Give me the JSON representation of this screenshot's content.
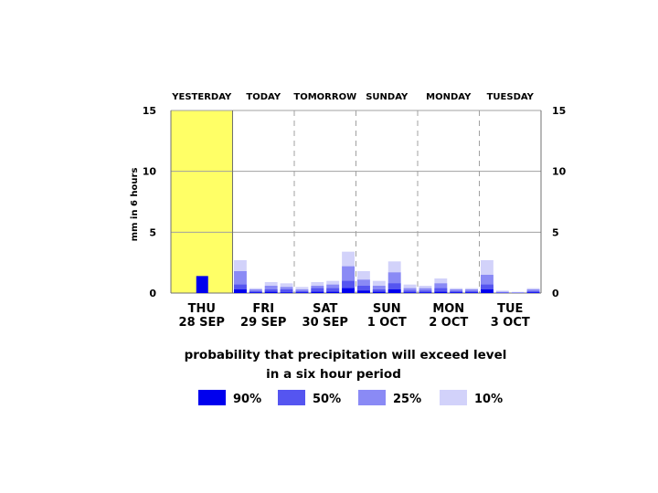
{
  "chart_data": {
    "type": "bar",
    "title": "",
    "ylabel": "mm in 6 hours",
    "ylim": [
      0,
      15
    ],
    "y_ticks": [
      "0",
      "5",
      "10",
      "15"
    ],
    "grid": true,
    "top_labels": [
      "YESTERDAY",
      "TODAY",
      "TOMORROW",
      "SUNDAY",
      "MONDAY",
      "TUESDAY"
    ],
    "day_labels": [
      {
        "day": "THU",
        "date": "28 SEP"
      },
      {
        "day": "FRI",
        "date": "29 SEP"
      },
      {
        "day": "SAT",
        "date": "30 SEP"
      },
      {
        "day": "SUN",
        "date": "1 OCT"
      },
      {
        "day": "MON",
        "date": "2 OCT"
      },
      {
        "day": "TUE",
        "date": "3 OCT"
      }
    ],
    "caption": [
      "probability that precipitation will exceed level",
      "in a six hour period"
    ],
    "series": [
      {
        "name": "90%",
        "color": "#0000ee"
      },
      {
        "name": "50%",
        "color": "#5555f0"
      },
      {
        "name": "25%",
        "color": "#8a8af5"
      },
      {
        "name": "10%",
        "color": "#d2d2fa"
      }
    ],
    "yesterday": {
      "value": 1.4,
      "color": "#0000ee",
      "highlight": "#ffff66"
    },
    "periods": [
      {
        "v90": 0.3,
        "v50": 0.7,
        "v25": 1.8,
        "v10": 2.7
      },
      {
        "v90": 0.05,
        "v50": 0.15,
        "v25": 0.3,
        "v10": 0.4
      },
      {
        "v90": 0.1,
        "v50": 0.3,
        "v25": 0.6,
        "v10": 0.9
      },
      {
        "v90": 0.05,
        "v50": 0.3,
        "v25": 0.5,
        "v10": 0.8
      },
      {
        "v90": 0.05,
        "v50": 0.15,
        "v25": 0.3,
        "v10": 0.5
      },
      {
        "v90": 0.1,
        "v50": 0.4,
        "v25": 0.6,
        "v10": 0.9
      },
      {
        "v90": 0.1,
        "v50": 0.4,
        "v25": 0.7,
        "v10": 1.0
      },
      {
        "v90": 0.4,
        "v50": 1.0,
        "v25": 2.2,
        "v10": 3.4
      },
      {
        "v90": 0.2,
        "v50": 0.6,
        "v25": 1.1,
        "v10": 1.8
      },
      {
        "v90": 0.1,
        "v50": 0.3,
        "v25": 0.6,
        "v10": 1.0
      },
      {
        "v90": 0.3,
        "v50": 0.8,
        "v25": 1.7,
        "v10": 2.6
      },
      {
        "v90": 0.05,
        "v50": 0.2,
        "v25": 0.4,
        "v10": 0.7
      },
      {
        "v90": 0.05,
        "v50": 0.2,
        "v25": 0.4,
        "v10": 0.6
      },
      {
        "v90": 0.1,
        "v50": 0.4,
        "v25": 0.8,
        "v10": 1.2
      },
      {
        "v90": 0.05,
        "v50": 0.15,
        "v25": 0.3,
        "v10": 0.4
      },
      {
        "v90": 0.05,
        "v50": 0.15,
        "v25": 0.3,
        "v10": 0.4
      },
      {
        "v90": 0.3,
        "v50": 0.7,
        "v25": 1.5,
        "v10": 2.7
      },
      {
        "v90": 0.0,
        "v50": 0.05,
        "v25": 0.1,
        "v10": 0.2
      },
      {
        "v90": 0.0,
        "v50": 0.02,
        "v25": 0.05,
        "v10": 0.1
      },
      {
        "v90": 0.05,
        "v50": 0.15,
        "v25": 0.3,
        "v10": 0.4
      }
    ]
  }
}
